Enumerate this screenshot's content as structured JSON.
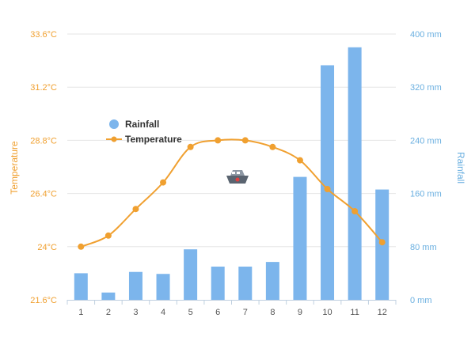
{
  "chart_data": {
    "type": "bar+line",
    "categories": [
      "1",
      "2",
      "3",
      "4",
      "5",
      "6",
      "7",
      "8",
      "9",
      "10",
      "11",
      "12"
    ],
    "series": [
      {
        "name": "Rainfall",
        "type": "bar",
        "axis": "right",
        "values": [
          40,
          11,
          42,
          39,
          76,
          50,
          50,
          57,
          185,
          353,
          380,
          166
        ]
      },
      {
        "name": "Temperature",
        "type": "line",
        "axis": "left",
        "values": [
          24,
          24.5,
          25.7,
          26.9,
          28.5,
          28.8,
          28.8,
          28.5,
          27.9,
          26.6,
          25.6,
          24.2
        ]
      }
    ],
    "ylabel_left": "Temperature",
    "ylabel_right": "Rainfall",
    "left_ticks": [
      "21.6°C",
      "24°C",
      "26.4°C",
      "28.8°C",
      "31.2°C",
      "33.6°C"
    ],
    "right_ticks": [
      "0 mm",
      "80 mm",
      "160 mm",
      "240 mm",
      "320 mm",
      "400 mm"
    ],
    "ylim_left": [
      21.6,
      33.6
    ],
    "ylim_right": [
      0,
      400
    ],
    "legend_position": "left",
    "grid": true,
    "colors": {
      "rainfall": "#7CB5EC",
      "temperature": "#F0A030",
      "left_axis": "#F0A030",
      "right_axis": "#6AAFE0"
    }
  }
}
